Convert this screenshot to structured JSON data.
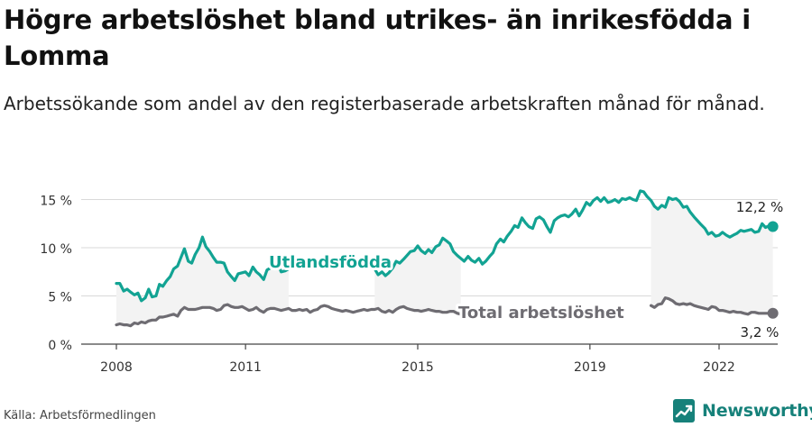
{
  "header": {
    "title": "Högre arbetslöshet bland utrikes- än inrikesfödda i Lomma",
    "subtitle": "Arbetssökande som andel av den registerbaserade arbetskraften månad för månad."
  },
  "footer": {
    "source": "Källa: Arbetsförmedlingen",
    "brand": "Newsworthy"
  },
  "colors": {
    "foreign_born": "#12a393",
    "total": "#6e6c72",
    "grid": "#d9d9d9",
    "band": "#f3f3f3",
    "brand": "#16817a"
  },
  "chart_data": {
    "type": "line",
    "title": "Högre arbetslöshet bland utrikes- än inrikesfödda i Lomma",
    "subtitle": "Arbetssökande som andel av den registerbaserade arbetskraften månad för månad.",
    "xlabel": "",
    "ylabel": "",
    "x_range": [
      2007.4,
      2023.7
    ],
    "ylim": [
      0,
      17
    ],
    "y_ticks": [
      0,
      5,
      10,
      15
    ],
    "y_tick_labels": [
      "0 %",
      "5 %",
      "10 %",
      "15 %"
    ],
    "x_ticks": [
      2008,
      2011,
      2015,
      2019,
      2022
    ],
    "x_tick_labels": [
      "2008",
      "2011",
      "2015",
      "2019",
      "2022"
    ],
    "grid": true,
    "series": [
      {
        "name": "Utlandsfödda",
        "label": "Utlandsfödda",
        "color": "#12a393",
        "end_label": "12,2 %",
        "x": [
          2008.0,
          2008.08,
          2008.17,
          2008.25,
          2008.33,
          2008.42,
          2008.5,
          2008.58,
          2008.67,
          2008.75,
          2008.83,
          2008.92,
          2009.0,
          2009.08,
          2009.17,
          2009.25,
          2009.33,
          2009.42,
          2009.5,
          2009.58,
          2009.67,
          2009.75,
          2009.83,
          2009.92,
          2010.0,
          2010.08,
          2010.17,
          2010.25,
          2010.33,
          2010.42,
          2010.5,
          2010.58,
          2010.67,
          2010.75,
          2010.83,
          2010.92,
          2011.0,
          2011.08,
          2011.17,
          2011.25,
          2011.33,
          2011.42,
          2011.5,
          2011.58,
          2011.67,
          2011.75,
          2011.83,
          2011.92,
          2012.0,
          null,
          2014.0,
          2014.08,
          2014.17,
          2014.25,
          2014.33,
          2014.42,
          2014.5,
          2014.58,
          2014.67,
          2014.75,
          2014.83,
          2014.92,
          2015.0,
          2015.08,
          2015.17,
          2015.25,
          2015.33,
          2015.42,
          2015.5,
          2015.58,
          2015.67,
          2015.75,
          2015.83,
          2015.92,
          2016.0,
          2016.08,
          2016.17,
          2016.25,
          2016.33,
          2016.42,
          2016.5,
          2016.58,
          2016.67,
          2016.75,
          2016.83,
          2016.92,
          2017.0,
          2017.08,
          2017.17,
          2017.25,
          2017.33,
          2017.42,
          2017.5,
          2017.58,
          2017.67,
          2017.75,
          2017.83,
          2017.92,
          2018.0,
          2018.08,
          2018.17,
          2018.25,
          2018.33,
          2018.42,
          2018.5,
          2018.58,
          2018.67,
          2018.75,
          2018.83,
          2018.92,
          2019.0,
          2019.08,
          2019.17,
          2019.25,
          2019.33,
          2019.42,
          2019.5,
          2019.58,
          2019.67,
          2019.75,
          2019.83,
          2019.92,
          2020.0,
          2020.08,
          2020.17,
          2020.25,
          2020.33,
          2020.42,
          2020.5,
          2020.58,
          2020.67,
          2020.75,
          2020.83,
          2020.92,
          2021.0,
          2021.08,
          2021.17,
          2021.25,
          2021.33,
          2021.42,
          2021.5,
          2021.58,
          2021.67,
          2021.75,
          2021.83,
          2021.92,
          2022.0,
          2022.08,
          2022.17,
          2022.25,
          2022.33,
          2022.42,
          2022.5,
          2022.58,
          2022.67,
          2022.75,
          2022.83,
          2022.92,
          2023.0,
          2023.08,
          2023.17,
          2023.25
        ],
        "values": [
          6.3,
          6.3,
          5.5,
          5.7,
          5.4,
          5.1,
          5.3,
          4.5,
          4.8,
          5.7,
          4.9,
          5.0,
          6.2,
          6.0,
          6.6,
          7.0,
          7.8,
          8.1,
          9.0,
          9.9,
          8.6,
          8.4,
          9.3,
          10.0,
          11.1,
          10.1,
          9.6,
          9.0,
          8.5,
          8.5,
          8.4,
          7.5,
          7.0,
          6.6,
          7.3,
          7.4,
          7.5,
          7.1,
          8.0,
          7.5,
          7.2,
          6.7,
          7.7,
          7.9,
          8.6,
          8.3,
          7.5,
          7.6,
          7.8,
          null,
          7.8,
          7.2,
          7.5,
          7.1,
          7.4,
          7.9,
          8.6,
          8.4,
          8.8,
          9.2,
          9.6,
          9.7,
          10.2,
          9.7,
          9.4,
          9.8,
          9.5,
          10.1,
          10.3,
          11.0,
          10.7,
          10.4,
          9.6,
          9.2,
          8.9,
          8.6,
          9.1,
          8.7,
          8.5,
          8.9,
          8.3,
          8.6,
          9.1,
          9.5,
          10.4,
          10.9,
          10.6,
          11.2,
          11.7,
          12.3,
          12.1,
          13.1,
          12.6,
          12.2,
          12.0,
          13.0,
          13.2,
          12.9,
          12.2,
          11.6,
          12.8,
          13.1,
          13.3,
          13.4,
          13.2,
          13.5,
          14.0,
          13.3,
          13.9,
          14.7,
          14.4,
          14.9,
          15.2,
          14.8,
          15.2,
          14.7,
          14.8,
          15.0,
          14.7,
          15.1,
          15.0,
          15.2,
          15.0,
          14.9,
          15.9,
          15.8,
          15.3,
          14.9,
          14.3,
          14.0,
          14.4,
          14.2,
          15.2,
          15.0,
          15.1,
          14.8,
          14.2,
          14.3,
          13.7,
          13.2,
          12.8,
          12.4,
          12.0,
          11.4,
          11.6,
          11.2,
          11.3,
          11.6,
          11.3,
          11.1,
          11.3,
          11.5,
          11.8,
          11.7,
          11.8,
          11.9,
          11.6,
          11.7,
          12.5,
          12.1,
          12.3,
          12.2
        ],
        "end_value": 12.2
      },
      {
        "name": "Total arbetslöshet",
        "label": "Total arbetslöshet",
        "color": "#6e6c72",
        "end_label": "3,2 %",
        "x": [
          2008.0,
          2008.08,
          2008.17,
          2008.25,
          2008.33,
          2008.42,
          2008.5,
          2008.58,
          2008.67,
          2008.75,
          2008.83,
          2008.92,
          2009.0,
          2009.08,
          2009.17,
          2009.25,
          2009.33,
          2009.42,
          2009.5,
          2009.58,
          2009.67,
          2009.75,
          2009.83,
          2009.92,
          2010.0,
          2010.08,
          2010.17,
          2010.25,
          2010.33,
          2010.42,
          2010.5,
          2010.58,
          2010.67,
          2010.75,
          2010.83,
          2010.92,
          2011.0,
          2011.08,
          2011.17,
          2011.25,
          2011.33,
          2011.42,
          2011.5,
          2011.58,
          2011.67,
          2011.75,
          2011.83,
          2011.92,
          2012.0,
          2012.08,
          2012.17,
          2012.25,
          2012.33,
          2012.42,
          2012.5,
          2012.58,
          2012.67,
          2012.75,
          2012.83,
          2012.92,
          2013.0,
          2013.08,
          2013.17,
          2013.25,
          2013.33,
          2013.42,
          2013.5,
          2013.58,
          2013.67,
          2013.75,
          2013.83,
          2013.92,
          2014.0,
          2014.08,
          2014.17,
          2014.25,
          2014.33,
          2014.42,
          2014.5,
          2014.58,
          2014.67,
          2014.75,
          2014.83,
          2014.92,
          2015.0,
          2015.08,
          2015.17,
          2015.25,
          2015.33,
          2015.42,
          2015.5,
          2015.58,
          2015.67,
          2015.75,
          2015.83,
          2015.92,
          2016.0,
          null,
          2020.42,
          2020.5,
          2020.58,
          2020.67,
          2020.75,
          2020.83,
          2020.92,
          2021.0,
          2021.08,
          2021.17,
          2021.25,
          2021.33,
          2021.42,
          2021.5,
          2021.58,
          2021.67,
          2021.75,
          2021.83,
          2021.92,
          2022.0,
          2022.08,
          2022.17,
          2022.25,
          2022.33,
          2022.42,
          2022.5,
          2022.58,
          2022.67,
          2022.75,
          2022.83,
          2022.92,
          2023.0,
          2023.08,
          2023.17,
          2023.25
        ],
        "values": [
          2.0,
          2.1,
          2.0,
          2.0,
          1.9,
          2.2,
          2.1,
          2.3,
          2.2,
          2.4,
          2.5,
          2.5,
          2.8,
          2.8,
          2.9,
          3.0,
          3.1,
          2.9,
          3.5,
          3.8,
          3.6,
          3.6,
          3.6,
          3.7,
          3.8,
          3.8,
          3.8,
          3.7,
          3.5,
          3.6,
          4.0,
          4.1,
          3.9,
          3.8,
          3.8,
          3.9,
          3.7,
          3.5,
          3.6,
          3.8,
          3.5,
          3.3,
          3.6,
          3.7,
          3.7,
          3.6,
          3.5,
          3.6,
          3.7,
          3.5,
          3.5,
          3.6,
          3.5,
          3.6,
          3.3,
          3.5,
          3.6,
          3.9,
          4.0,
          3.9,
          3.7,
          3.6,
          3.5,
          3.4,
          3.5,
          3.4,
          3.3,
          3.4,
          3.5,
          3.6,
          3.5,
          3.6,
          3.6,
          3.7,
          3.4,
          3.3,
          3.5,
          3.3,
          3.6,
          3.8,
          3.9,
          3.7,
          3.6,
          3.5,
          3.5,
          3.4,
          3.5,
          3.6,
          3.5,
          3.4,
          3.4,
          3.3,
          3.3,
          3.4,
          3.4,
          3.2,
          3.1,
          null,
          4.0,
          3.8,
          4.1,
          4.2,
          4.8,
          4.7,
          4.5,
          4.2,
          4.1,
          4.2,
          4.1,
          4.2,
          4.0,
          3.9,
          3.8,
          3.7,
          3.6,
          3.9,
          3.8,
          3.5,
          3.5,
          3.4,
          3.3,
          3.4,
          3.3,
          3.3,
          3.2,
          3.1,
          3.3,
          3.3,
          3.2,
          3.2,
          3.2,
          3.2,
          3.2
        ],
        "end_value": 3.2
      }
    ]
  }
}
